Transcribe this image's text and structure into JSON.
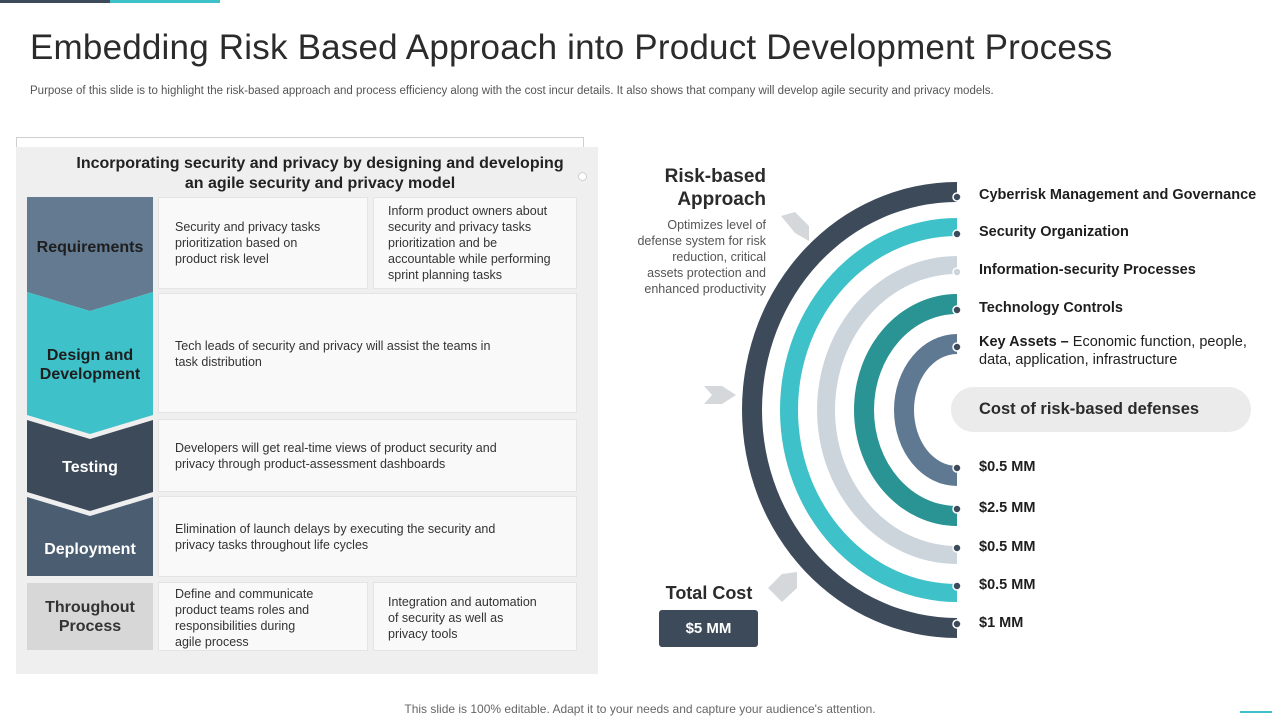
{
  "title": "Embedding Risk Based Approach into Product Development Process",
  "subtitle": "Purpose of this slide is to highlight the risk-based approach and process efficiency along with the cost incur details. It also shows that company will develop agile security and privacy models.",
  "left_panel": {
    "heading_line1": "Incorporating security and privacy by designing and developing",
    "heading_line2": "an agile security and privacy model",
    "stages": [
      {
        "label_line1": "Requirements",
        "label_line2": ""
      },
      {
        "label_line1": "Design and",
        "label_line2": "Development"
      },
      {
        "label_line1": "Testing",
        "label_line2": ""
      },
      {
        "label_line1": "Deployment",
        "label_line2": ""
      },
      {
        "label_line1": "Throughout",
        "label_line2": "Process"
      }
    ],
    "cells": {
      "req_a": [
        "Security and privacy tasks",
        "prioritization based on",
        "product risk level"
      ],
      "req_b": [
        "Inform product owners about",
        "security and privacy tasks",
        "prioritization and be",
        "accountable while performing",
        "sprint planning tasks"
      ],
      "design": [
        "Tech leads of security and privacy  will assist the teams in",
        "task distribution"
      ],
      "testing": [
        "Developers  will get real-time views  of product security and",
        "privacy through product-assessment dashboards"
      ],
      "deployment": [
        "Elimination of launch delays by executing the security and",
        "privacy  tasks throughout life cycles"
      ],
      "through_a": [
        "Define  and communicate",
        "product teams roles and",
        "responsibilities during",
        "agile process"
      ],
      "through_b": [
        "Integration and automation",
        "of security as well as",
        "privacy tools"
      ]
    }
  },
  "risk_based": {
    "title_line1": "Risk-based",
    "title_line2": "Approach",
    "desc": [
      "Optimizes level of",
      "defense  system for risk",
      "reduction, critical",
      "assets protection and",
      "enhanced productivity"
    ]
  },
  "total": {
    "label": "Total Cost",
    "value": "$5 MM"
  },
  "layers": [
    {
      "label": "Cyberrisk Management and Governance",
      "color": "#3d4a5a"
    },
    {
      "label": "Security Organization",
      "color": "#3fc1c9"
    },
    {
      "label": "Information-security Processes",
      "color": "#ccd4dc"
    },
    {
      "label": "Technology Controls",
      "color": "#2a9394"
    },
    {
      "label": "Key Assets –",
      "color": "#5f7993"
    }
  ],
  "key_assets_desc": "Economic function, people, data, application,  infrastructure",
  "cost_title": "Cost of risk-based defenses",
  "costs": [
    "$0.5 MM",
    "$2.5 MM",
    "$0.5 MM",
    "$0.5 MM",
    "$1 MM"
  ],
  "footer": "This slide is 100% editable. Adapt it to your needs and capture your audience's attention.",
  "colors": {
    "dark": "#3d4a5a",
    "teal": "#3fc1c9",
    "light_grey": "#ccd4dc",
    "dark_teal": "#2a9394",
    "slate": "#5f7993",
    "stage_req": "#637a91",
    "stage_throughout": "#d7d7d7"
  }
}
